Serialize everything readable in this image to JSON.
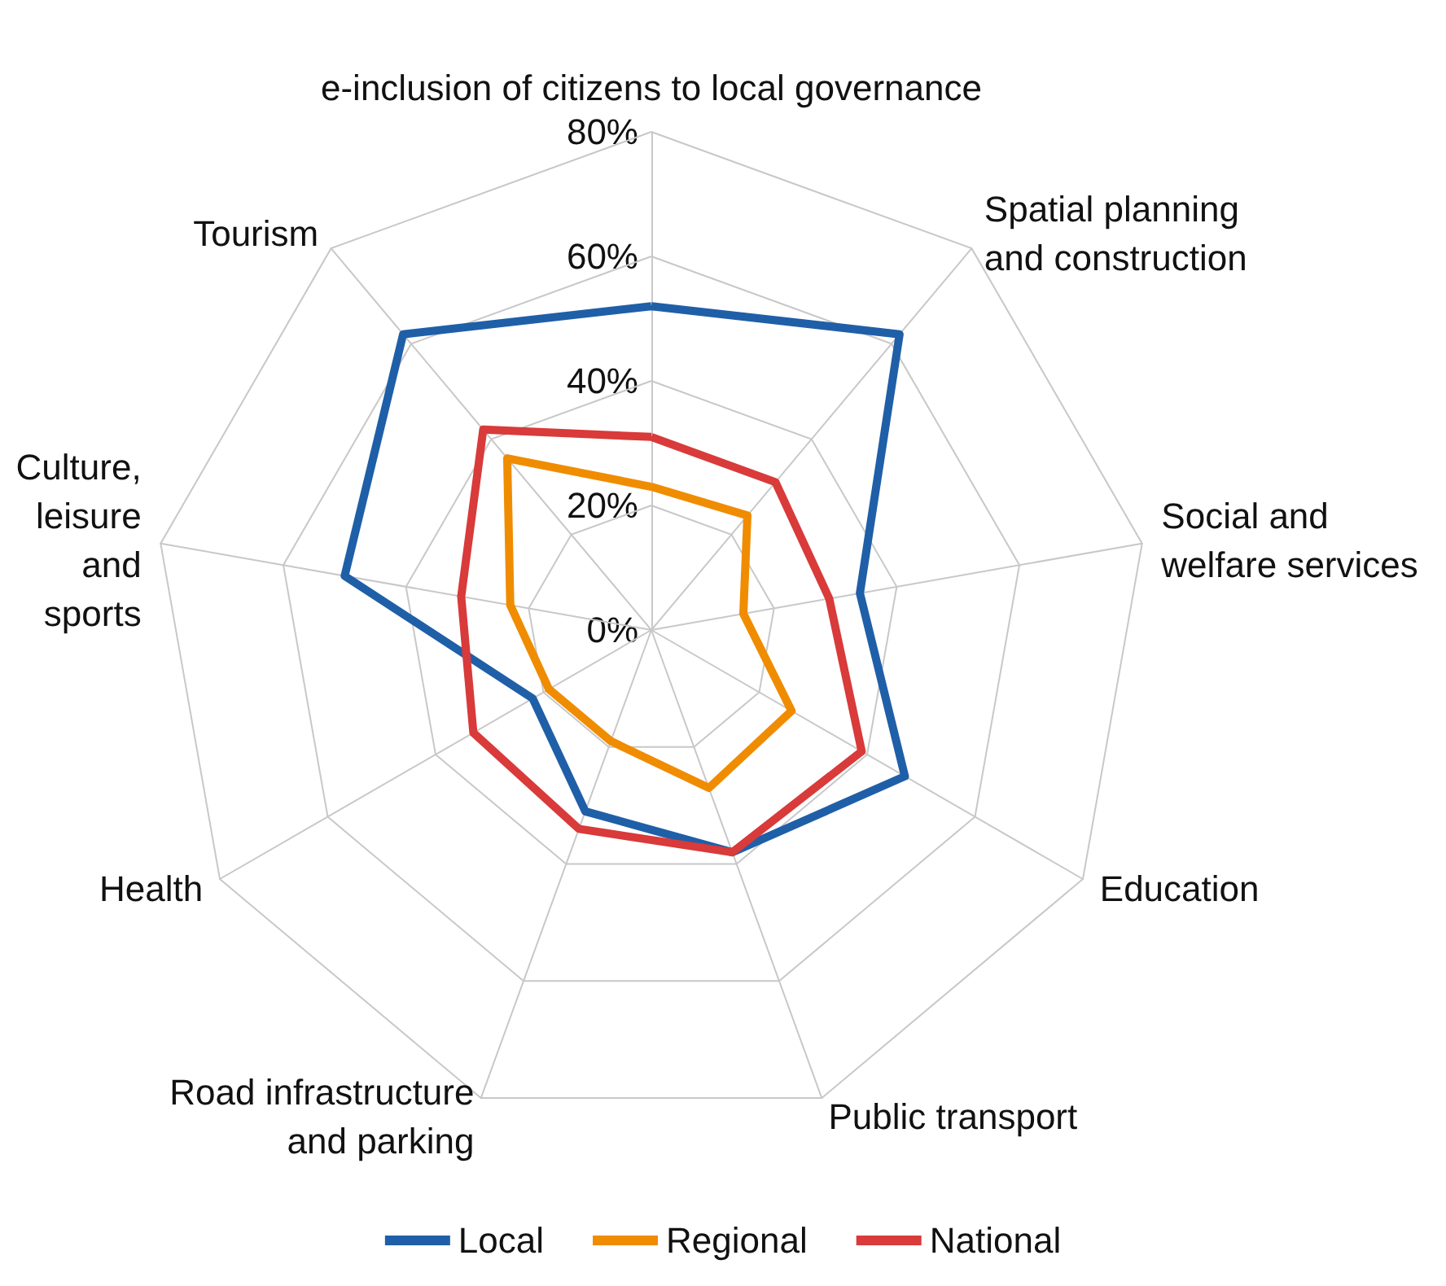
{
  "chart_data": {
    "type": "radar",
    "categories": [
      "e-inclusion of citizens to local governance",
      "Spatial planning\nand construction",
      "Social and\nwelfare services",
      "Education",
      "Public transport",
      "Road infrastructure\nand parking",
      "Health",
      "Culture,\nleisure\nand\nsports",
      "Tourism"
    ],
    "series": [
      {
        "name": "Local",
        "color": "#1f5fa8",
        "values": [
          52,
          62,
          34,
          47,
          38,
          31,
          22,
          50,
          62
        ]
      },
      {
        "name": "Regional",
        "color": "#f08c00",
        "values": [
          23,
          24,
          15,
          26,
          27,
          19,
          19,
          23,
          36
        ]
      },
      {
        "name": "National",
        "color": "#d93a3a",
        "values": [
          31,
          31,
          29,
          39,
          38,
          34,
          33,
          31,
          42
        ]
      }
    ],
    "ylim": [
      0,
      80
    ],
    "yticks": [
      {
        "value": 0,
        "label": "0%"
      },
      {
        "value": 20,
        "label": "20%"
      },
      {
        "value": 40,
        "label": "40%"
      },
      {
        "value": 60,
        "label": "60%"
      },
      {
        "value": 80,
        "label": "80%"
      }
    ],
    "legend": "bottom",
    "grid": true,
    "marker": "none",
    "line_style": "solid"
  }
}
